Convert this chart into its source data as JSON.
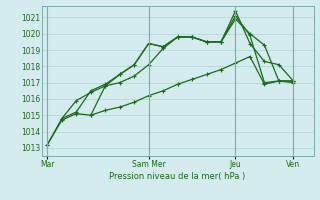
{
  "bg_color": "#d4ecee",
  "grid_color": "#aed4d6",
  "line_color": "#1a6b1a",
  "title": "Pression niveau de la mer( hPa )",
  "xlabel_days": [
    "Mar",
    "Sam Mer",
    "Jeu",
    "Ven"
  ],
  "xlabel_x_positions": [
    0,
    3.5,
    6.5,
    8.5
  ],
  "vline_x": [
    0,
    3.5,
    6.5,
    8.5
  ],
  "ylim": [
    1012.5,
    1021.7
  ],
  "yticks": [
    1013,
    1014,
    1015,
    1016,
    1017,
    1018,
    1019,
    1020,
    1021
  ],
  "xlim": [
    -0.2,
    9.2
  ],
  "series1_x": [
    0,
    0.5,
    1.0,
    1.5,
    2.0,
    2.5,
    3.0,
    3.5,
    4.0,
    4.5,
    5.0,
    5.5,
    6.0,
    6.5,
    7.0,
    7.5,
    8.0,
    8.5
  ],
  "series1_y": [
    1013.2,
    1014.7,
    1015.1,
    1015.0,
    1015.3,
    1015.5,
    1015.8,
    1016.2,
    1016.5,
    1016.9,
    1017.2,
    1017.5,
    1017.8,
    1018.2,
    1018.6,
    1016.9,
    1017.1,
    1017.1
  ],
  "series2_x": [
    0,
    0.5,
    1.0,
    1.5,
    2.0,
    2.5,
    3.0,
    3.5,
    4.0,
    4.5,
    5.0,
    5.5,
    6.0,
    6.5,
    7.0,
    7.5,
    8.0,
    8.5
  ],
  "series2_y": [
    1013.2,
    1014.8,
    1015.9,
    1016.4,
    1016.8,
    1017.0,
    1017.4,
    1018.1,
    1019.1,
    1019.8,
    1019.8,
    1019.5,
    1019.5,
    1021.1,
    1019.9,
    1017.0,
    1017.1,
    1017.1
  ],
  "series3_x": [
    0.5,
    1.0,
    1.5,
    2.0,
    2.5,
    3.0,
    3.5,
    4.0,
    4.5,
    5.0,
    5.5,
    6.0,
    6.5,
    7.0,
    7.5,
    8.0,
    8.5
  ],
  "series3_y": [
    1014.8,
    1015.2,
    1016.5,
    1016.9,
    1017.5,
    1018.1,
    1019.4,
    1019.2,
    1019.8,
    1019.8,
    1019.5,
    1019.5,
    1021.4,
    1019.4,
    1018.3,
    1018.1,
    1017.1
  ],
  "series4_x": [
    1.5,
    2.0,
    2.5,
    3.0,
    3.5,
    4.0,
    4.5,
    5.0,
    5.5,
    6.0,
    6.5,
    7.0,
    7.5,
    8.0,
    8.5
  ],
  "series4_y": [
    1015.0,
    1016.8,
    1017.5,
    1018.1,
    1019.4,
    1019.2,
    1019.8,
    1019.8,
    1019.5,
    1019.5,
    1020.9,
    1020.0,
    1019.3,
    1017.1,
    1017.0
  ]
}
